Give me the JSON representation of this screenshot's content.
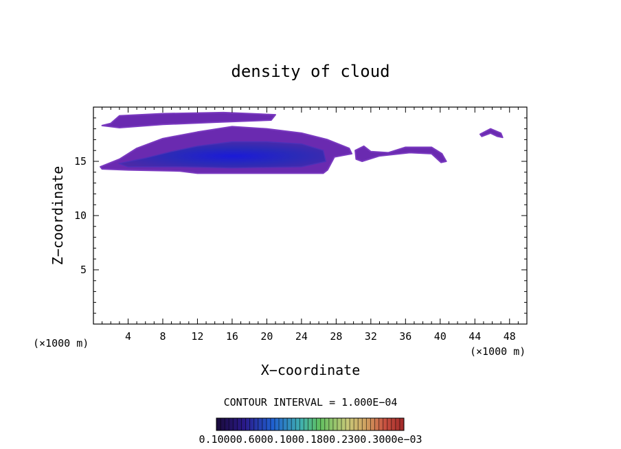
{
  "chart_data": {
    "type": "contour",
    "title": "density of cloud",
    "xlabel": "X−coordinate",
    "ylabel": "Z−coordinate",
    "x_unit_label_left": "(×1000 m)",
    "x_unit_label_right": "(×1000 m)",
    "xlim": [
      0,
      50
    ],
    "ylim": [
      0,
      20
    ],
    "xticks": [
      4,
      8,
      12,
      16,
      20,
      24,
      28,
      32,
      36,
      40,
      44,
      48
    ],
    "yticks": [
      5,
      10,
      15
    ],
    "contour_interval_text": "CONTOUR INTERVAL = 1.000E−04",
    "colorbar_labels_text": "0.10000.6000.1000.1800.2300.3000e−03",
    "colorbar_colors": [
      "#1a0a3a",
      "#2a1a8a",
      "#2060d0",
      "#40b0b0",
      "#60c060",
      "#c8c878",
      "#d0a060",
      "#c85040",
      "#a02828"
    ],
    "cloud_regions": [
      {
        "name": "upper-layer",
        "points": [
          [
            2.0,
            18.5
          ],
          [
            3.0,
            19.2
          ],
          [
            8,
            19.4
          ],
          [
            15,
            19.5
          ],
          [
            21,
            19.3
          ],
          [
            20.5,
            18.8
          ],
          [
            14,
            18.6
          ],
          [
            8,
            18.4
          ],
          [
            3,
            18.1
          ],
          [
            1.0,
            18.3
          ]
        ]
      },
      {
        "name": "main-body",
        "points": [
          [
            0.8,
            14.5
          ],
          [
            3,
            15.2
          ],
          [
            5,
            16.2
          ],
          [
            8,
            17.1
          ],
          [
            12,
            17.7
          ],
          [
            16,
            18.2
          ],
          [
            20,
            18.0
          ],
          [
            24,
            17.6
          ],
          [
            27,
            17.0
          ],
          [
            29.5,
            16.2
          ],
          [
            29.8,
            15.7
          ],
          [
            27.8,
            15.4
          ],
          [
            27.0,
            14.2
          ],
          [
            26.5,
            13.9
          ],
          [
            12.0,
            13.9
          ],
          [
            10,
            14.1
          ],
          [
            4,
            14.2
          ],
          [
            1,
            14.3
          ]
        ]
      },
      {
        "name": "mid-fragment",
        "points": [
          [
            30.2,
            16.0
          ],
          [
            31.2,
            16.4
          ],
          [
            32,
            15.9
          ],
          [
            34,
            15.8
          ],
          [
            36,
            16.3
          ],
          [
            39,
            16.3
          ],
          [
            40.2,
            15.7
          ],
          [
            40.7,
            15.0
          ],
          [
            40.1,
            14.9
          ],
          [
            39,
            15.7
          ],
          [
            36.5,
            15.8
          ],
          [
            33,
            15.5
          ],
          [
            31,
            15.0
          ],
          [
            30.3,
            15.2
          ]
        ]
      },
      {
        "name": "right-fragment",
        "points": [
          [
            44.6,
            17.5
          ],
          [
            45.8,
            18.0
          ],
          [
            47.0,
            17.6
          ],
          [
            47.2,
            17.2
          ],
          [
            46.6,
            17.3
          ],
          [
            45.8,
            17.6
          ],
          [
            44.8,
            17.3
          ]
        ]
      }
    ],
    "core_region": {
      "name": "dense-core",
      "points": [
        [
          3,
          14.8
        ],
        [
          6,
          15.3
        ],
        [
          9,
          15.9
        ],
        [
          12,
          16.4
        ],
        [
          16,
          16.8
        ],
        [
          20,
          16.8
        ],
        [
          24,
          16.6
        ],
        [
          26.5,
          16.0
        ],
        [
          26.8,
          15.0
        ],
        [
          24,
          14.5
        ],
        [
          16,
          14.4
        ],
        [
          10,
          14.5
        ],
        [
          4,
          14.5
        ]
      ]
    }
  }
}
